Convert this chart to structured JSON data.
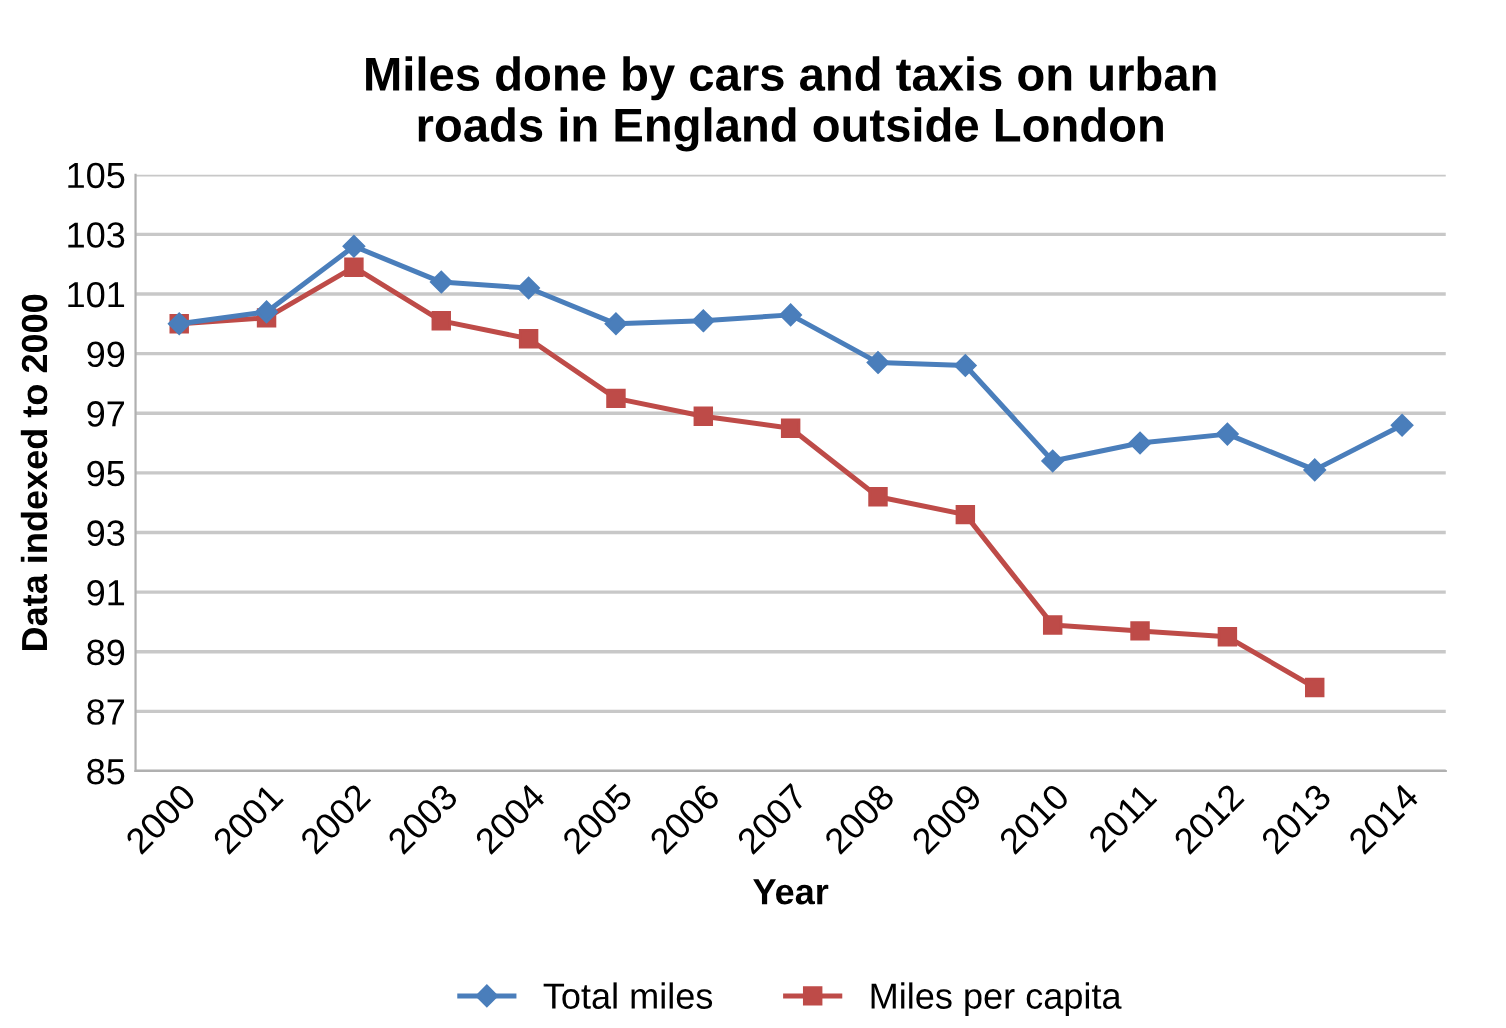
{
  "chart_data": {
    "type": "line",
    "title": "Miles done by cars and taxis on urban\nroads in England outside London",
    "xlabel": "Year",
    "ylabel": "Data indexed to 2000",
    "categories": [
      "2000",
      "2001",
      "2002",
      "2003",
      "2004",
      "2005",
      "2006",
      "2007",
      "2008",
      "2009",
      "2010",
      "2011",
      "2012",
      "2013",
      "2014"
    ],
    "series": [
      {
        "name": "Total miles",
        "color": "#4a7ebb",
        "marker": "diamond",
        "values": [
          100,
          100.4,
          102.6,
          101.4,
          101.2,
          100.0,
          100.1,
          100.3,
          98.7,
          98.6,
          95.4,
          96.0,
          96.3,
          95.1,
          96.6
        ]
      },
      {
        "name": "Miles per capita",
        "color": "#be4b48",
        "marker": "square",
        "values": [
          100,
          100.2,
          101.9,
          100.1,
          99.5,
          97.5,
          96.9,
          96.5,
          94.2,
          93.6,
          89.9,
          89.7,
          89.5,
          87.8,
          null
        ]
      }
    ],
    "ylim": [
      85,
      105
    ],
    "yticks": [
      85,
      87,
      89,
      91,
      93,
      95,
      97,
      99,
      101,
      103,
      105
    ],
    "grid": "y",
    "legend": "bottom"
  }
}
